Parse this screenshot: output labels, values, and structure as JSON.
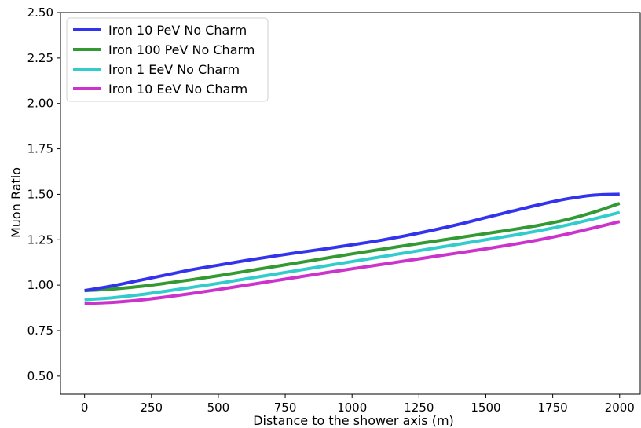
{
  "chart_data": {
    "type": "line",
    "title": "",
    "xlabel": "Distance to the shower axis (m)",
    "ylabel": "Muon Ratio",
    "xlim": [
      -90,
      2080
    ],
    "ylim": [
      0.4,
      2.5
    ],
    "x_ticks": [
      0,
      250,
      500,
      750,
      1000,
      1250,
      1500,
      1750,
      2000
    ],
    "y_ticks": [
      0.5,
      0.75,
      1.0,
      1.25,
      1.5,
      1.75,
      2.0,
      2.25,
      2.5
    ],
    "y_tick_labels": [
      "0.50",
      "0.75",
      "1.00",
      "1.25",
      "1.50",
      "1.75",
      "2.00",
      "2.25",
      "2.50"
    ],
    "grid": false,
    "legend_position": "top-left",
    "series": [
      {
        "name": "Iron 10 PeV No Charm",
        "color": "#3333ee",
        "x": [
          0,
          100,
          200,
          300,
          400,
          500,
          600,
          700,
          800,
          900,
          1000,
          1100,
          1200,
          1300,
          1400,
          1500,
          1600,
          1700,
          1800,
          1900,
          2000
        ],
        "y": [
          0.97,
          0.995,
          1.025,
          1.055,
          1.085,
          1.11,
          1.135,
          1.158,
          1.18,
          1.2,
          1.222,
          1.245,
          1.272,
          1.302,
          1.335,
          1.372,
          1.408,
          1.443,
          1.474,
          1.495,
          1.5
        ]
      },
      {
        "name": "Iron 100 PeV No Charm",
        "color": "#339933",
        "x": [
          0,
          100,
          200,
          300,
          400,
          500,
          600,
          700,
          800,
          900,
          1000,
          1100,
          1200,
          1300,
          1400,
          1500,
          1600,
          1700,
          1800,
          1900,
          2000
        ],
        "y": [
          0.97,
          0.978,
          0.992,
          1.01,
          1.03,
          1.052,
          1.076,
          1.1,
          1.124,
          1.148,
          1.172,
          1.195,
          1.218,
          1.24,
          1.262,
          1.284,
          1.306,
          1.33,
          1.36,
          1.4,
          1.45
        ]
      },
      {
        "name": "Iron 1 EeV No Charm",
        "color": "#33cccc",
        "x": [
          0,
          100,
          200,
          300,
          400,
          500,
          600,
          700,
          800,
          900,
          1000,
          1100,
          1200,
          1300,
          1400,
          1500,
          1600,
          1700,
          1800,
          1900,
          2000
        ],
        "y": [
          0.92,
          0.93,
          0.946,
          0.966,
          0.988,
          1.01,
          1.034,
          1.058,
          1.082,
          1.106,
          1.13,
          1.154,
          1.178,
          1.202,
          1.226,
          1.25,
          1.274,
          1.3,
          1.33,
          1.364,
          1.4
        ]
      },
      {
        "name": "Iron 10 EeV No Charm",
        "color": "#cc33cc",
        "x": [
          0,
          100,
          200,
          300,
          400,
          500,
          600,
          700,
          800,
          900,
          1000,
          1100,
          1200,
          1300,
          1400,
          1500,
          1600,
          1700,
          1800,
          1900,
          2000
        ],
        "y": [
          0.9,
          0.905,
          0.917,
          0.934,
          0.954,
          0.976,
          0.999,
          1.022,
          1.045,
          1.068,
          1.09,
          1.112,
          1.134,
          1.156,
          1.178,
          1.2,
          1.224,
          1.25,
          1.28,
          1.314,
          1.35
        ]
      }
    ]
  }
}
